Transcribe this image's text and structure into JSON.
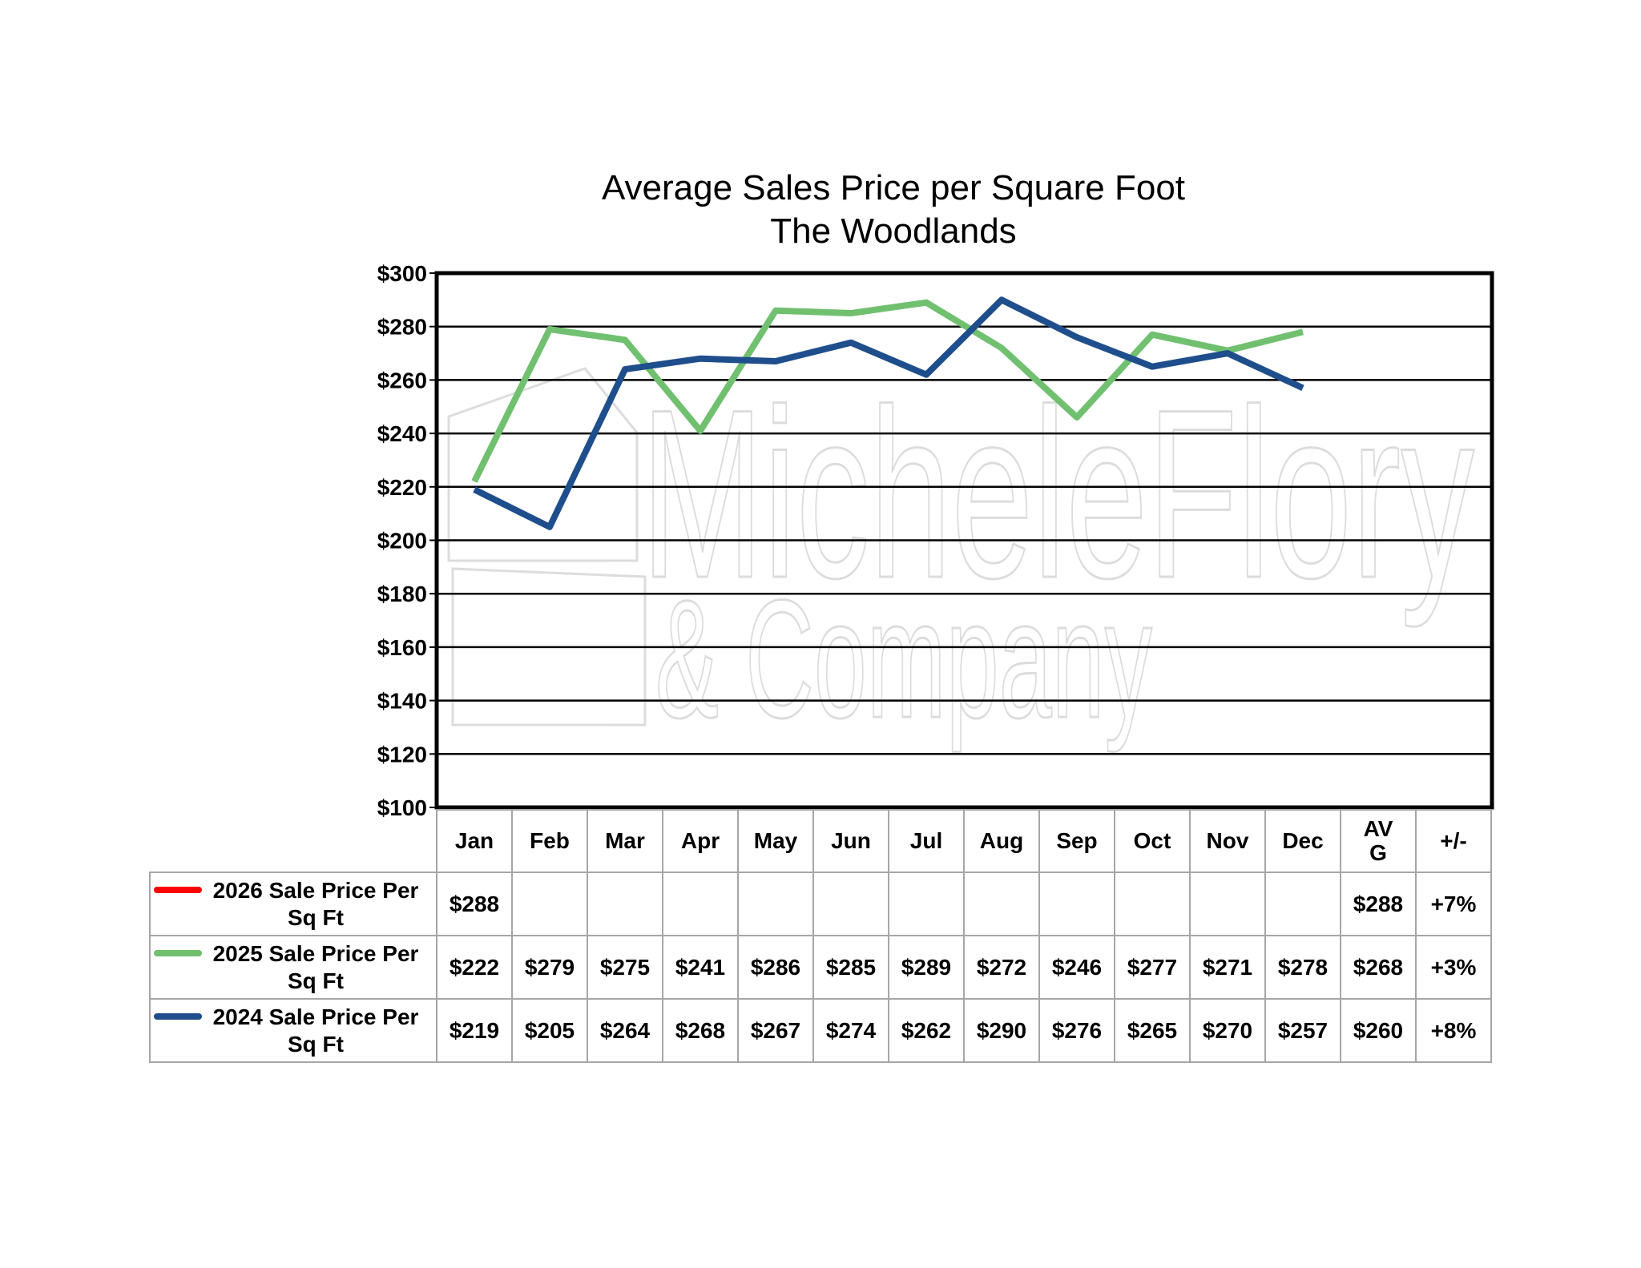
{
  "chart_data": {
    "type": "line",
    "title": "Average Sales Price per Square Foot",
    "subtitle": "The Woodlands",
    "categories": [
      "Jan",
      "Feb",
      "Mar",
      "Apr",
      "May",
      "Jun",
      "Jul",
      "Aug",
      "Sep",
      "Oct",
      "Nov",
      "Dec"
    ],
    "ylim": [
      100,
      300
    ],
    "yticks": [
      300,
      280,
      260,
      240,
      220,
      200,
      180,
      160,
      140,
      120,
      100
    ],
    "ytick_labels": [
      "$300",
      "$280",
      "$260",
      "$240",
      "$220",
      "$200",
      "$180",
      "$160",
      "$140",
      "$120",
      "$100"
    ],
    "grid": true,
    "extra_columns": [
      "AV G",
      "+/-"
    ],
    "series": [
      {
        "name": "2026 Sale Price Per Sq Ft",
        "color": "#ff0000",
        "values": [
          288,
          null,
          null,
          null,
          null,
          null,
          null,
          null,
          null,
          null,
          null,
          null
        ],
        "table_values": [
          "$288",
          "",
          "",
          "",
          "",
          "",
          "",
          "",
          "",
          "",
          "",
          ""
        ],
        "avg": "$288",
        "change": "+7%"
      },
      {
        "name": "2025 Sale Price Per Sq Ft",
        "color": "#70c070",
        "values": [
          222,
          279,
          275,
          241,
          286,
          285,
          289,
          272,
          246,
          277,
          271,
          278
        ],
        "table_values": [
          "$222",
          "$279",
          "$275",
          "$241",
          "$286",
          "$285",
          "$289",
          "$272",
          "$246",
          "$277",
          "$271",
          "$278"
        ],
        "avg": "$268",
        "change": "+3%"
      },
      {
        "name": "2024 Sale Price Per Sq Ft",
        "color": "#1f4e8c",
        "values": [
          219,
          205,
          264,
          268,
          267,
          274,
          262,
          290,
          276,
          265,
          270,
          257
        ],
        "table_values": [
          "$219",
          "$205",
          "$264",
          "$268",
          "$267",
          "$274",
          "$262",
          "$290",
          "$276",
          "$265",
          "$270",
          "$257"
        ],
        "avg": "$260",
        "change": "+8%"
      }
    ]
  },
  "watermark": {
    "line1": "MicheleFlory",
    "line2": "& Company"
  }
}
